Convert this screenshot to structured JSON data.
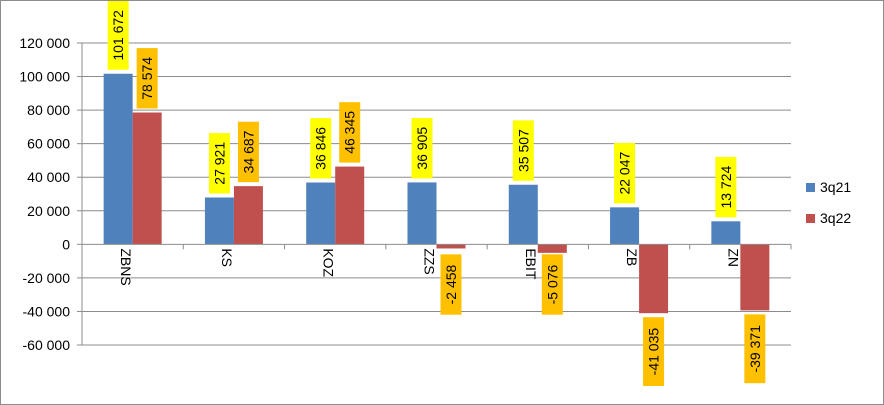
{
  "chart_data": {
    "type": "bar",
    "title": "",
    "xlabel": "",
    "ylabel": "",
    "categories": [
      "ZBNS",
      "KS",
      "KOZ",
      "ZZS",
      "EBIT",
      "ZB",
      "ZN"
    ],
    "series": [
      {
        "name": "3q21",
        "values": [
          101672,
          27921,
          36846,
          36905,
          35507,
          22047,
          13724
        ],
        "labels": [
          "101 672",
          "27 921",
          "36 846",
          "36 905",
          "35 507",
          "22 047",
          "13 724"
        ],
        "color": "#4f81bd",
        "label_bg": "#ffff00"
      },
      {
        "name": "3q22",
        "values": [
          78574,
          34687,
          46345,
          -2458,
          -5076,
          -41035,
          -39371
        ],
        "labels": [
          "78 574",
          "34 687",
          "46 345",
          "-2 458",
          "-5 076",
          "-41 035",
          "-39 371"
        ],
        "color": "#c0504d",
        "label_bg": "#ffc000"
      }
    ],
    "ylim": [
      -60000,
      120000
    ],
    "yticks": [
      120000,
      100000,
      80000,
      60000,
      40000,
      20000,
      0,
      -20000,
      -40000,
      -60000
    ],
    "ytick_labels": [
      "120 000",
      "100 000",
      "80 000",
      "60 000",
      "40 000",
      "20 000",
      "0",
      "-20 000",
      "-40 000",
      "-60 000"
    ],
    "grid": true,
    "legend_position": "right"
  }
}
